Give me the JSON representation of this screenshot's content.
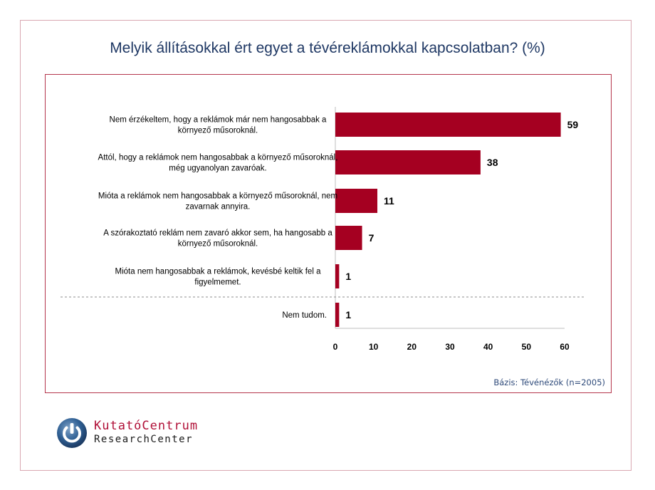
{
  "chart_data": {
    "type": "bar",
    "orientation": "horizontal",
    "title": "Melyik állításokkal ért egyet a tévéreklámokkal kapcsolatban? (%)",
    "categories": [
      [
        "Nem érzékeltem, hogy a reklámok már nem hangosabbak a",
        "környező műsoroknál."
      ],
      [
        "Attól, hogy a reklámok nem hangosabbak a környező műsoroknál,",
        "még ugyanolyan zavaróak."
      ],
      [
        "Mióta a reklámok nem hangosabbak a környező műsoroknál, nem",
        "zavarnak annyira."
      ],
      [
        "A szórakoztató reklám nem zavaró akkor sem, ha hangosabb a",
        "környező műsoroknál."
      ],
      [
        "Mióta nem hangosabbak a reklámok, kevésbé keltik fel a",
        "figyelmemet."
      ],
      [
        "Nem tudom."
      ]
    ],
    "values": [
      59,
      38,
      11,
      7,
      1,
      1
    ],
    "data_labels": [
      "59",
      "38",
      "11",
      "7",
      "1",
      "1"
    ],
    "xlim": [
      0,
      60
    ],
    "xticks": [
      "0",
      "10",
      "20",
      "30",
      "40",
      "50",
      "60"
    ],
    "bar_color": "#a50021",
    "separator_after_index": 4,
    "grid": false,
    "legend": "none"
  },
  "basis_note": "Bázis: Tévénézők (n=2005)",
  "logo": {
    "line1": "KutatóCentrum",
    "line2": "ResearchCenter",
    "accent_color": "#b00f37",
    "icon": "power-symbol-icon"
  }
}
